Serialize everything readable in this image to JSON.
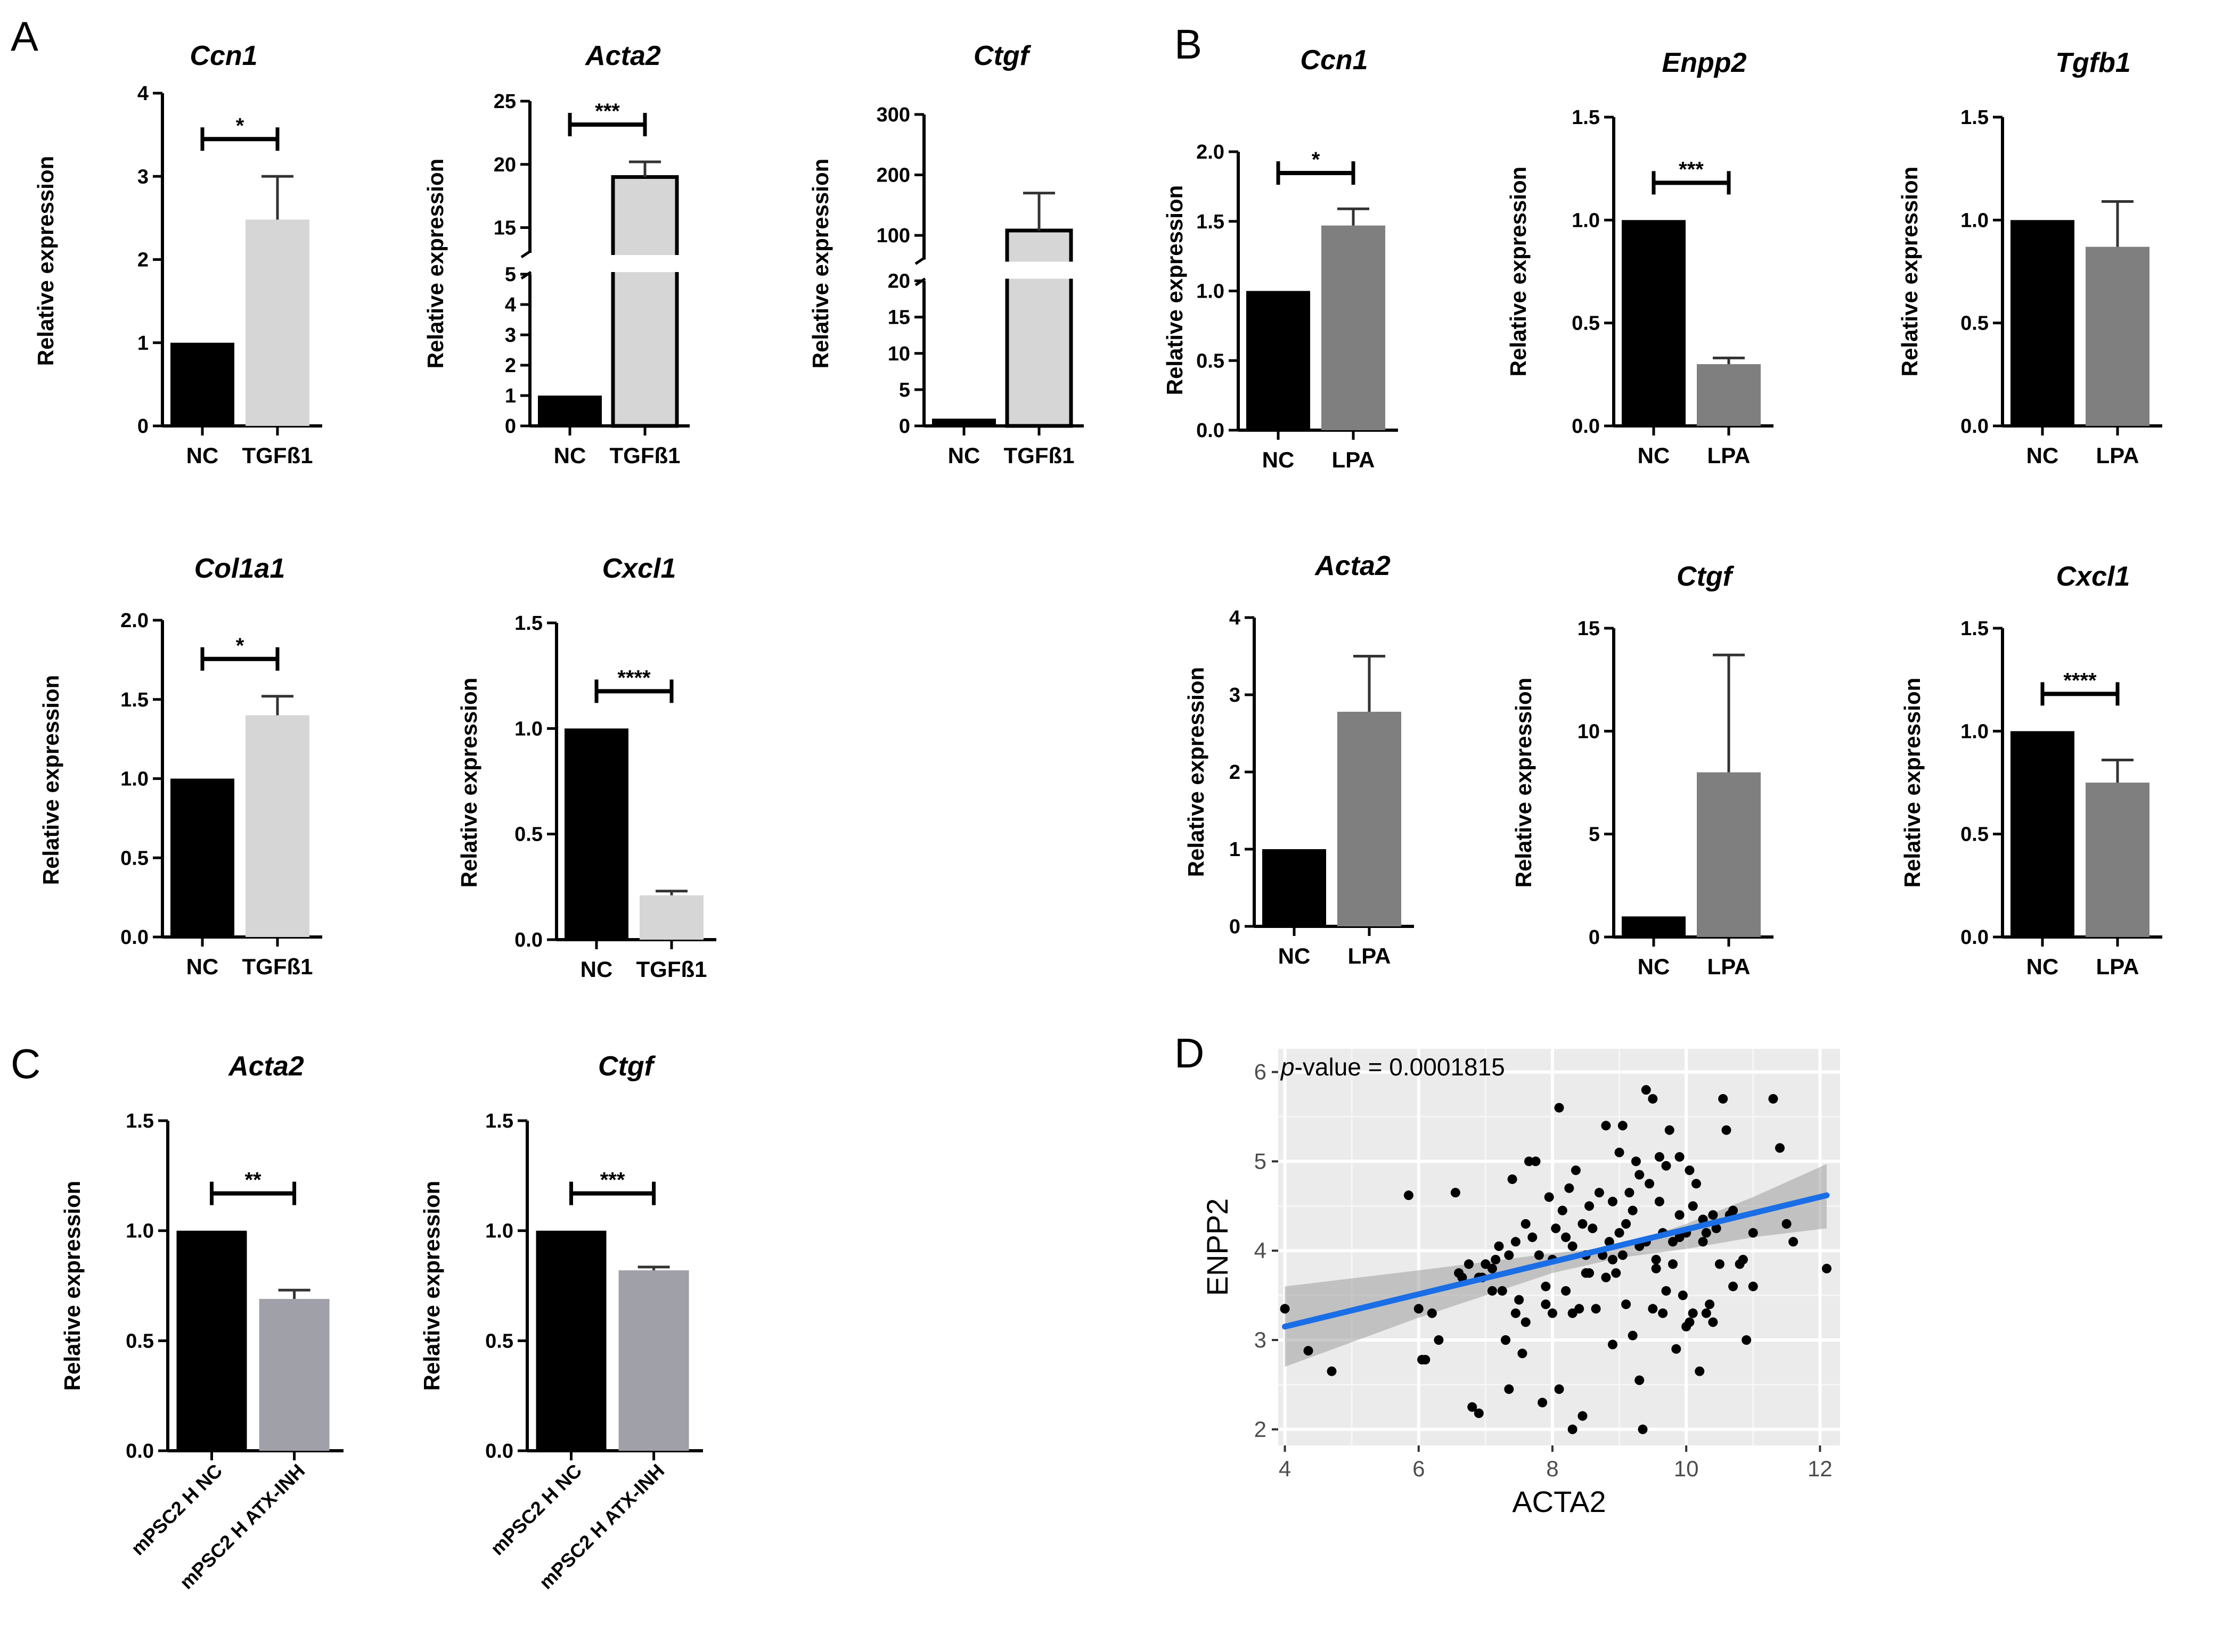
{
  "colors": {
    "nc": "#000000",
    "tgfb1": "#d6d6d6",
    "lpa": "#7f7f7f",
    "atx_inh": "#a0a0a8",
    "scatter_panel_bg": "#ebebeb",
    "fit_line": "#1a6ee6",
    "ci_band": "#9e9e9e"
  },
  "panel_labels": [
    "A",
    "B",
    "C",
    "D"
  ],
  "chart_data": [
    {
      "panel": "A",
      "type": "bar",
      "title": "Ccn1",
      "ylabel": "Relative expression",
      "categories": [
        "NC",
        "TGFß1"
      ],
      "values": [
        1.0,
        2.48
      ],
      "errors": [
        0,
        0.52
      ],
      "colors": [
        "#000000",
        "#d6d6d6"
      ],
      "ylim": [
        0,
        4
      ],
      "yticks": [
        0,
        1,
        2,
        3,
        4
      ],
      "significance": "*"
    },
    {
      "panel": "A",
      "type": "bar",
      "title": "Acta2",
      "ylabel": "Relative expression",
      "categories": [
        "NC",
        "TGFß1"
      ],
      "values": [
        1.0,
        19.0
      ],
      "errors": [
        0,
        1.2
      ],
      "colors": [
        "#000000",
        "#d6d6d6"
      ],
      "broken_axis": {
        "lower": [
          0,
          5
        ],
        "upper": [
          13,
          25
        ]
      },
      "yticks": [
        0,
        1,
        2,
        3,
        4,
        5,
        15,
        20,
        25
      ],
      "significance": "***"
    },
    {
      "panel": "A",
      "type": "bar",
      "title": "Ctgf",
      "ylabel": "Relative expression",
      "categories": [
        "NC",
        "TGFß1"
      ],
      "values": [
        1.0,
        108
      ],
      "errors": [
        0,
        62
      ],
      "colors": [
        "#000000",
        "#d6d6d6"
      ],
      "broken_axis": {
        "lower": [
          0,
          20
        ],
        "upper": [
          60,
          300
        ]
      },
      "yticks": [
        0,
        5,
        10,
        15,
        20,
        100,
        200,
        300
      ],
      "significance": ""
    },
    {
      "panel": "A",
      "type": "bar",
      "title": "Col1a1",
      "ylabel": "Relative expression",
      "categories": [
        "NC",
        "TGFß1"
      ],
      "values": [
        1.0,
        1.4
      ],
      "errors": [
        0,
        0.12
      ],
      "colors": [
        "#000000",
        "#d6d6d6"
      ],
      "ylim": [
        0,
        2.0
      ],
      "yticks": [
        0,
        0.5,
        1.0,
        1.5,
        2.0
      ],
      "ytick_labels": [
        "0.0",
        "0.5",
        "1.0",
        "1.5",
        "2.0"
      ],
      "significance": "*"
    },
    {
      "panel": "A",
      "type": "bar",
      "title": "Cxcl1",
      "ylabel": "Relative expression",
      "categories": [
        "NC",
        "TGFß1"
      ],
      "values": [
        1.0,
        0.21
      ],
      "errors": [
        0,
        0.02
      ],
      "colors": [
        "#000000",
        "#d6d6d6"
      ],
      "ylim": [
        0,
        1.5
      ],
      "yticks": [
        0,
        0.5,
        1.0,
        1.5
      ],
      "ytick_labels": [
        "0.0",
        "0.5",
        "1.0",
        "1.5"
      ],
      "significance": "****"
    },
    {
      "panel": "B",
      "type": "bar",
      "title": "Ccn1",
      "ylabel": "Relative expression",
      "categories": [
        "NC",
        "LPA"
      ],
      "values": [
        1.0,
        1.47
      ],
      "errors": [
        0,
        0.12
      ],
      "colors": [
        "#000000",
        "#7f7f7f"
      ],
      "ylim": [
        0,
        2.0
      ],
      "yticks": [
        0,
        0.5,
        1.0,
        1.5,
        2.0
      ],
      "ytick_labels": [
        "0.0",
        "0.5",
        "1.0",
        "1.5",
        "2.0"
      ],
      "significance": "*"
    },
    {
      "panel": "B",
      "type": "bar",
      "title": "Enpp2",
      "ylabel": "Relative expression",
      "categories": [
        "NC",
        "LPA"
      ],
      "values": [
        1.0,
        0.3
      ],
      "errors": [
        0,
        0.03
      ],
      "colors": [
        "#000000",
        "#7f7f7f"
      ],
      "ylim": [
        0,
        1.5
      ],
      "yticks": [
        0,
        0.5,
        1.0,
        1.5
      ],
      "ytick_labels": [
        "0.0",
        "0.5",
        "1.0",
        "1.5"
      ],
      "significance": "***"
    },
    {
      "panel": "B",
      "type": "bar",
      "title": "Tgfb1",
      "ylabel": "Relative expression",
      "categories": [
        "NC",
        "LPA"
      ],
      "values": [
        1.0,
        0.87
      ],
      "errors": [
        0,
        0.22
      ],
      "colors": [
        "#000000",
        "#7f7f7f"
      ],
      "ylim": [
        0,
        1.5
      ],
      "yticks": [
        0,
        0.5,
        1.0,
        1.5
      ],
      "ytick_labels": [
        "0.0",
        "0.5",
        "1.0",
        "1.5"
      ],
      "significance": ""
    },
    {
      "panel": "B",
      "type": "bar",
      "title": "Acta2",
      "ylabel": "Relative expression",
      "categories": [
        "NC",
        "LPA"
      ],
      "values": [
        1.0,
        2.78
      ],
      "errors": [
        0,
        0.72
      ],
      "colors": [
        "#000000",
        "#7f7f7f"
      ],
      "ylim": [
        0,
        4
      ],
      "yticks": [
        0,
        1,
        2,
        3,
        4
      ],
      "significance": ""
    },
    {
      "panel": "B",
      "type": "bar",
      "title": "Ctgf",
      "ylabel": "Relative expression",
      "categories": [
        "NC",
        "LPA"
      ],
      "values": [
        1.0,
        8.0
      ],
      "errors": [
        0,
        5.7
      ],
      "colors": [
        "#000000",
        "#7f7f7f"
      ],
      "ylim": [
        0,
        15
      ],
      "yticks": [
        0,
        5,
        10,
        15
      ],
      "significance": ""
    },
    {
      "panel": "B",
      "type": "bar",
      "title": "Cxcl1",
      "ylabel": "Relative expression",
      "categories": [
        "NC",
        "LPA"
      ],
      "values": [
        1.0,
        0.75
      ],
      "errors": [
        0,
        0.11
      ],
      "colors": [
        "#000000",
        "#7f7f7f"
      ],
      "ylim": [
        0,
        1.5
      ],
      "yticks": [
        0,
        0.5,
        1.0,
        1.5
      ],
      "ytick_labels": [
        "0.0",
        "0.5",
        "1.0",
        "1.5"
      ],
      "significance": "****"
    },
    {
      "panel": "C",
      "type": "bar",
      "title": "Acta2",
      "ylabel": "Relative expression",
      "categories": [
        "mPSC2 H NC",
        "mPSC2 H ATX-INH"
      ],
      "values": [
        1.0,
        0.69
      ],
      "errors": [
        0,
        0.04
      ],
      "colors": [
        "#000000",
        "#a0a0a8"
      ],
      "ylim": [
        0,
        1.5
      ],
      "yticks": [
        0,
        0.5,
        1.0,
        1.5
      ],
      "ytick_labels": [
        "0.0",
        "0.5",
        "1.0",
        "1.5"
      ],
      "significance": "**"
    },
    {
      "panel": "C",
      "type": "bar",
      "title": "Ctgf",
      "ylabel": "Relative expression",
      "categories": [
        "mPSC2 H NC",
        "mPSC2 H ATX-INH"
      ],
      "values": [
        1.0,
        0.82
      ],
      "errors": [
        0,
        0.015
      ],
      "colors": [
        "#000000",
        "#a0a0a8"
      ],
      "ylim": [
        0,
        1.5
      ],
      "yticks": [
        0,
        0.5,
        1.0,
        1.5
      ],
      "ytick_labels": [
        "0.0",
        "0.5",
        "1.0",
        "1.5"
      ],
      "significance": "***"
    },
    {
      "panel": "D",
      "type": "scatter",
      "xlabel": "ACTA2",
      "ylabel": "ENPP2",
      "annotation_italic": "p",
      "annotation_rest": "-value = 0.0001815",
      "xlim": [
        3.9,
        12.3
      ],
      "ylim": [
        1.82,
        6.26
      ],
      "xticks": [
        4,
        6,
        8,
        10,
        12
      ],
      "yticks": [
        2,
        3,
        4,
        5,
        6
      ],
      "fit": {
        "x0": 4.0,
        "y0": 3.15,
        "x1": 12.1,
        "y1": 4.62
      },
      "band": {
        "upper": [
          [
            4.0,
            3.6
          ],
          [
            6.0,
            3.78
          ],
          [
            8.0,
            3.97
          ],
          [
            9.0,
            4.05
          ],
          [
            10.0,
            4.3
          ],
          [
            11.0,
            4.6
          ],
          [
            12.1,
            4.97
          ]
        ],
        "lower": [
          [
            12.1,
            4.25
          ],
          [
            11.0,
            4.15
          ],
          [
            10.0,
            4.02
          ],
          [
            9.0,
            3.92
          ],
          [
            8.0,
            3.75
          ],
          [
            6.0,
            3.25
          ],
          [
            4.0,
            2.7
          ]
        ]
      },
      "points": [
        [
          4.0,
          3.35
        ],
        [
          4.35,
          2.88
        ],
        [
          4.7,
          2.65
        ],
        [
          5.85,
          4.62
        ],
        [
          6.0,
          3.35
        ],
        [
          6.05,
          2.78
        ],
        [
          6.1,
          2.78
        ],
        [
          6.2,
          3.3
        ],
        [
          6.3,
          3.0
        ],
        [
          6.55,
          4.65
        ],
        [
          6.6,
          3.75
        ],
        [
          6.65,
          3.7
        ],
        [
          6.75,
          3.85
        ],
        [
          6.8,
          2.25
        ],
        [
          6.9,
          2.18
        ],
        [
          6.95,
          3.7
        ],
        [
          7.0,
          3.85
        ],
        [
          7.1,
          3.8
        ],
        [
          7.15,
          3.9
        ],
        [
          7.2,
          4.05
        ],
        [
          7.25,
          3.55
        ],
        [
          7.3,
          3.0
        ],
        [
          7.35,
          2.45
        ],
        [
          7.35,
          3.95
        ],
        [
          7.4,
          4.8
        ],
        [
          7.45,
          3.3
        ],
        [
          7.5,
          3.45
        ],
        [
          7.55,
          2.85
        ],
        [
          7.6,
          4.3
        ],
        [
          7.6,
          3.2
        ],
        [
          7.65,
          5.0
        ],
        [
          7.7,
          4.15
        ],
        [
          7.75,
          5.0
        ],
        [
          7.8,
          3.95
        ],
        [
          7.85,
          2.3
        ],
        [
          7.9,
          3.6
        ],
        [
          7.95,
          4.6
        ],
        [
          8.0,
          3.9
        ],
        [
          8.05,
          4.25
        ],
        [
          8.1,
          2.45
        ],
        [
          8.1,
          5.6
        ],
        [
          8.15,
          4.45
        ],
        [
          8.2,
          4.15
        ],
        [
          8.2,
          3.55
        ],
        [
          8.25,
          4.7
        ],
        [
          8.3,
          3.3
        ],
        [
          8.3,
          2.0
        ],
        [
          8.35,
          4.9
        ],
        [
          8.4,
          3.35
        ],
        [
          8.45,
          2.15
        ],
        [
          8.5,
          3.95
        ],
        [
          8.5,
          3.75
        ],
        [
          8.55,
          4.5
        ],
        [
          8.6,
          4.25
        ],
        [
          8.65,
          3.35
        ],
        [
          8.7,
          4.65
        ],
        [
          8.75,
          3.95
        ],
        [
          8.8,
          5.4
        ],
        [
          8.8,
          3.7
        ],
        [
          8.85,
          4.1
        ],
        [
          8.9,
          2.95
        ],
        [
          8.9,
          4.55
        ],
        [
          8.95,
          3.75
        ],
        [
          9.0,
          4.2
        ],
        [
          9.0,
          5.1
        ],
        [
          9.05,
          5.4
        ],
        [
          9.1,
          4.3
        ],
        [
          9.1,
          3.4
        ],
        [
          9.15,
          4.65
        ],
        [
          9.2,
          3.05
        ],
        [
          9.2,
          4.45
        ],
        [
          9.25,
          5.0
        ],
        [
          9.3,
          4.85
        ],
        [
          9.3,
          2.55
        ],
        [
          9.35,
          2.0
        ],
        [
          9.4,
          4.1
        ],
        [
          9.4,
          5.8
        ],
        [
          9.45,
          4.75
        ],
        [
          9.5,
          3.35
        ],
        [
          9.5,
          5.7
        ],
        [
          9.55,
          3.8
        ],
        [
          9.6,
          5.05
        ],
        [
          9.6,
          4.55
        ],
        [
          9.65,
          4.2
        ],
        [
          9.7,
          3.55
        ],
        [
          9.75,
          5.35
        ],
        [
          9.8,
          4.1
        ],
        [
          9.8,
          3.85
        ],
        [
          9.85,
          2.9
        ],
        [
          9.9,
          5.05
        ],
        [
          9.9,
          4.4
        ],
        [
          9.95,
          3.5
        ],
        [
          10.0,
          4.2
        ],
        [
          10.0,
          3.15
        ],
        [
          10.05,
          4.9
        ],
        [
          10.1,
          4.5
        ],
        [
          10.1,
          3.3
        ],
        [
          10.15,
          4.75
        ],
        [
          10.2,
          2.65
        ],
        [
          10.25,
          4.35
        ],
        [
          10.3,
          3.3
        ],
        [
          10.3,
          4.2
        ],
        [
          10.35,
          3.4
        ],
        [
          10.4,
          4.4
        ],
        [
          10.45,
          4.25
        ],
        [
          10.5,
          3.85
        ],
        [
          10.55,
          5.7
        ],
        [
          10.6,
          5.35
        ],
        [
          10.7,
          4.45
        ],
        [
          10.8,
          3.85
        ],
        [
          10.9,
          3.0
        ],
        [
          11.0,
          3.6
        ],
        [
          11.0,
          4.2
        ],
        [
          11.3,
          5.7
        ],
        [
          11.4,
          5.15
        ],
        [
          11.6,
          4.1
        ],
        [
          11.5,
          4.3
        ],
        [
          12.1,
          3.8
        ],
        [
          8.0,
          3.3
        ],
        [
          9.65,
          3.3
        ],
        [
          10.05,
          3.2
        ],
        [
          10.4,
          3.2
        ],
        [
          10.7,
          3.6
        ],
        [
          10.85,
          3.9
        ],
        [
          7.1,
          3.55
        ],
        [
          7.45,
          4.1
        ],
        [
          8.45,
          4.3
        ],
        [
          9.05,
          3.95
        ],
        [
          9.7,
          4.95
        ],
        [
          10.25,
          4.1
        ],
        [
          7.3,
          3.0
        ],
        [
          8.55,
          3.75
        ],
        [
          9.3,
          4.05
        ],
        [
          9.9,
          4.15
        ],
        [
          10.65,
          4.4
        ],
        [
          8.3,
          4.05
        ],
        [
          8.9,
          3.9
        ],
        [
          6.9,
          3.7
        ],
        [
          7.9,
          3.4
        ],
        [
          9.55,
          3.9
        ]
      ]
    }
  ]
}
